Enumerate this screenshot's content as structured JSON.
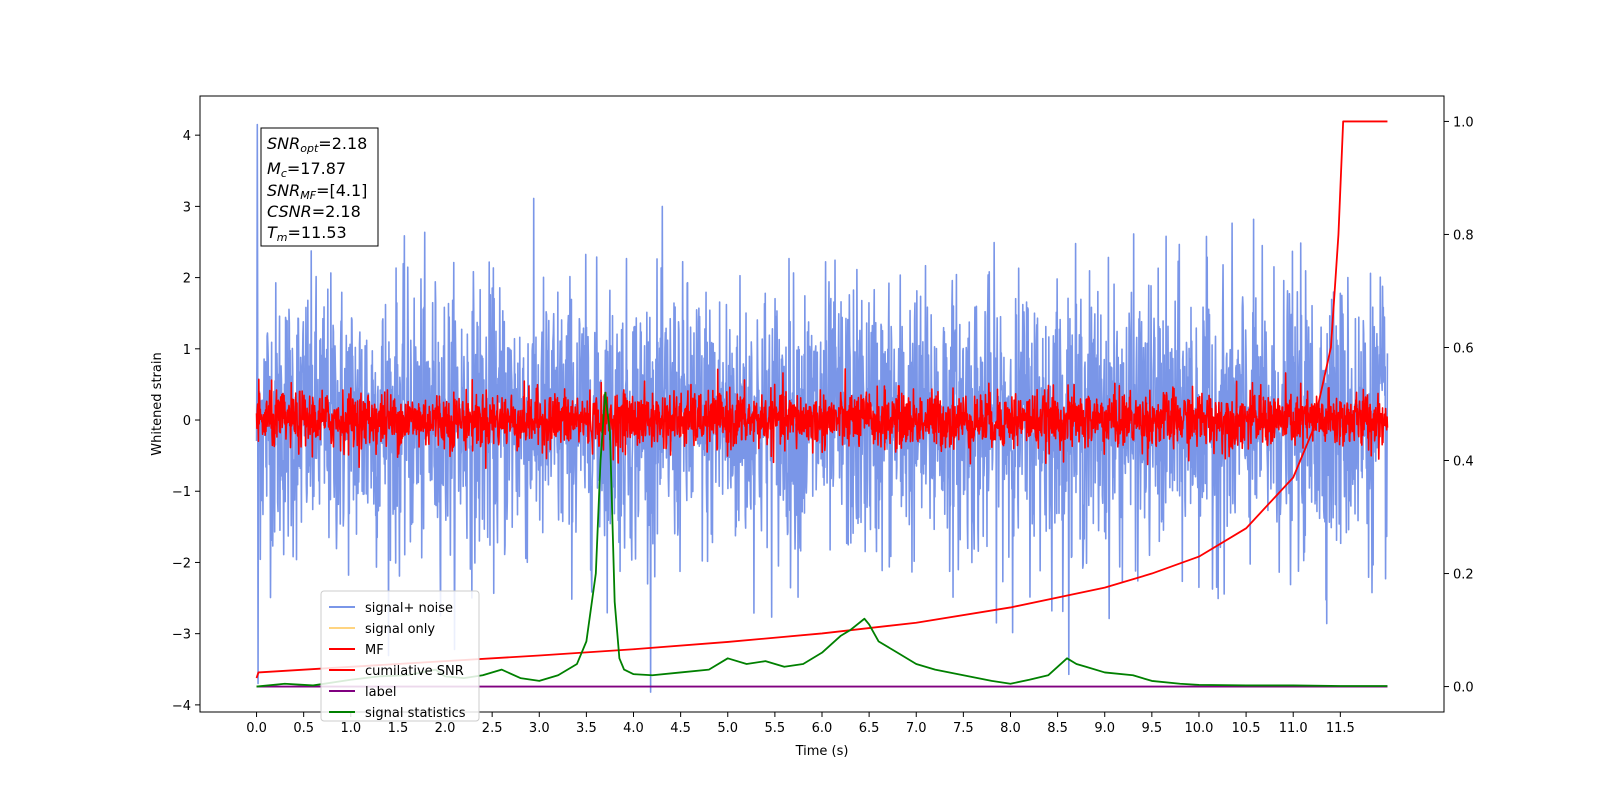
{
  "chart_data": {
    "type": "line",
    "xlabel": "Time (s)",
    "ylabel": "Whitened strain",
    "xlim": [
      -0.6,
      12.6
    ],
    "ylim": [
      -4.1,
      4.55
    ],
    "ylim_right": [
      -0.045,
      1.045
    ],
    "xticks": [
      "0.0",
      "0.5",
      "1.0",
      "1.5",
      "2.0",
      "2.5",
      "3.0",
      "3.5",
      "4.0",
      "4.5",
      "5.0",
      "5.5",
      "6.0",
      "6.5",
      "7.0",
      "7.5",
      "8.0",
      "8.5",
      "9.0",
      "9.5",
      "10.0",
      "10.5",
      "11.0",
      "11.5"
    ],
    "yticks_left": [
      "4",
      "3",
      "2",
      "1",
      "0",
      "−1",
      "−2",
      "−3",
      "−4"
    ],
    "yticks_right": [
      "1.0",
      "0.8",
      "0.6",
      "0.4",
      "0.2",
      "0.0"
    ],
    "grid": false,
    "legend_position": "lower-left",
    "annotation": {
      "snr_opt": {
        "sym": "SNR",
        "sub": "opt",
        "value": "=2.18"
      },
      "mc": {
        "sym": "M",
        "sub": "c",
        "value": "=17.87"
      },
      "snr_mf": {
        "sym": "SNR",
        "sub": "MF",
        "value": "=[4.1]"
      },
      "csnr": {
        "sym": "CSNR",
        "sub": "",
        "value": "=2.18"
      },
      "tm": {
        "sym": "T",
        "sub": "m",
        "value": "=11.53"
      }
    },
    "series": [
      {
        "name": "signal+ noise",
        "color": "#7a96e8",
        "axis": "left",
        "style": "noise",
        "std": 0.95,
        "x_range": [
          0,
          12
        ],
        "samples": 3000
      },
      {
        "name": "signal only",
        "color": "#ffd480",
        "axis": "left",
        "style": "flat",
        "y": 0
      },
      {
        "name": "MF",
        "color": "#ff0000",
        "axis": "left",
        "style": "noise",
        "std": 0.2,
        "x_range": [
          0,
          12
        ],
        "samples": 3000
      },
      {
        "name": "cumilative SNR",
        "color": "#ff0000",
        "axis": "right",
        "style": "line",
        "x": [
          0.0,
          0.02,
          1.0,
          2.0,
          3.0,
          4.0,
          5.0,
          6.0,
          7.0,
          8.0,
          9.0,
          9.5,
          10.0,
          10.5,
          11.0,
          11.2,
          11.4,
          11.48,
          11.53,
          12.0
        ],
        "y": [
          0.015,
          0.025,
          0.035,
          0.045,
          0.055,
          0.066,
          0.079,
          0.094,
          0.113,
          0.14,
          0.175,
          0.2,
          0.23,
          0.28,
          0.37,
          0.45,
          0.6,
          0.8,
          1.0,
          1.0
        ]
      },
      {
        "name": "label",
        "color": "#800080",
        "axis": "right",
        "style": "line",
        "x": [
          0,
          12
        ],
        "y": [
          0,
          0
        ]
      },
      {
        "name": "signal statistics",
        "color": "#008000",
        "axis": "right",
        "style": "line",
        "x": [
          0.0,
          0.3,
          0.6,
          1.0,
          1.3,
          1.6,
          1.9,
          2.0,
          2.2,
          2.4,
          2.6,
          2.8,
          3.0,
          3.2,
          3.4,
          3.5,
          3.6,
          3.65,
          3.7,
          3.75,
          3.8,
          3.85,
          3.9,
          4.0,
          4.2,
          4.5,
          4.8,
          5.0,
          5.2,
          5.4,
          5.6,
          5.8,
          6.0,
          6.2,
          6.3,
          6.45,
          6.5,
          6.6,
          6.8,
          7.0,
          7.2,
          7.5,
          7.8,
          8.0,
          8.2,
          8.4,
          8.6,
          8.7,
          8.8,
          9.0,
          9.3,
          9.5,
          9.8,
          10.0,
          10.5,
          11.0,
          11.5,
          12.0
        ],
        "y": [
          0.0,
          0.005,
          0.002,
          0.012,
          0.018,
          0.02,
          0.03,
          0.018,
          0.015,
          0.02,
          0.03,
          0.015,
          0.01,
          0.02,
          0.04,
          0.08,
          0.2,
          0.4,
          0.52,
          0.45,
          0.15,
          0.05,
          0.03,
          0.022,
          0.02,
          0.025,
          0.03,
          0.05,
          0.04,
          0.045,
          0.035,
          0.04,
          0.06,
          0.09,
          0.1,
          0.12,
          0.11,
          0.08,
          0.06,
          0.04,
          0.03,
          0.02,
          0.01,
          0.005,
          0.012,
          0.02,
          0.05,
          0.04,
          0.035,
          0.025,
          0.02,
          0.01,
          0.005,
          0.003,
          0.002,
          0.002,
          0.001,
          0.001
        ]
      }
    ]
  }
}
